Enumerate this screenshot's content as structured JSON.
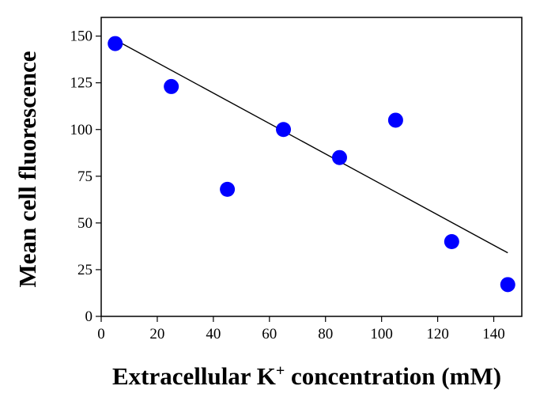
{
  "chart_data": {
    "type": "scatter",
    "xlabel": "Extracellular K",
    "xlabel_sup": "+",
    "xlabel_suffix": " concentration (mM)",
    "ylabel": "Mean cell fluorescence",
    "xlim": [
      0,
      150
    ],
    "ylim": [
      0,
      160
    ],
    "xticks": [
      0,
      20,
      40,
      60,
      80,
      100,
      120,
      140
    ],
    "yticks": [
      0,
      25,
      50,
      75,
      100,
      125,
      150
    ],
    "grid": false,
    "marker_color": "#0000ff",
    "points": [
      {
        "x": 5,
        "y": 146
      },
      {
        "x": 25,
        "y": 123
      },
      {
        "x": 45,
        "y": 68
      },
      {
        "x": 65,
        "y": 100
      },
      {
        "x": 85,
        "y": 85
      },
      {
        "x": 105,
        "y": 105
      },
      {
        "x": 125,
        "y": 40
      },
      {
        "x": 145,
        "y": 17
      }
    ],
    "trendline": {
      "x": [
        5,
        145
      ],
      "y": [
        148,
        34
      ]
    }
  }
}
